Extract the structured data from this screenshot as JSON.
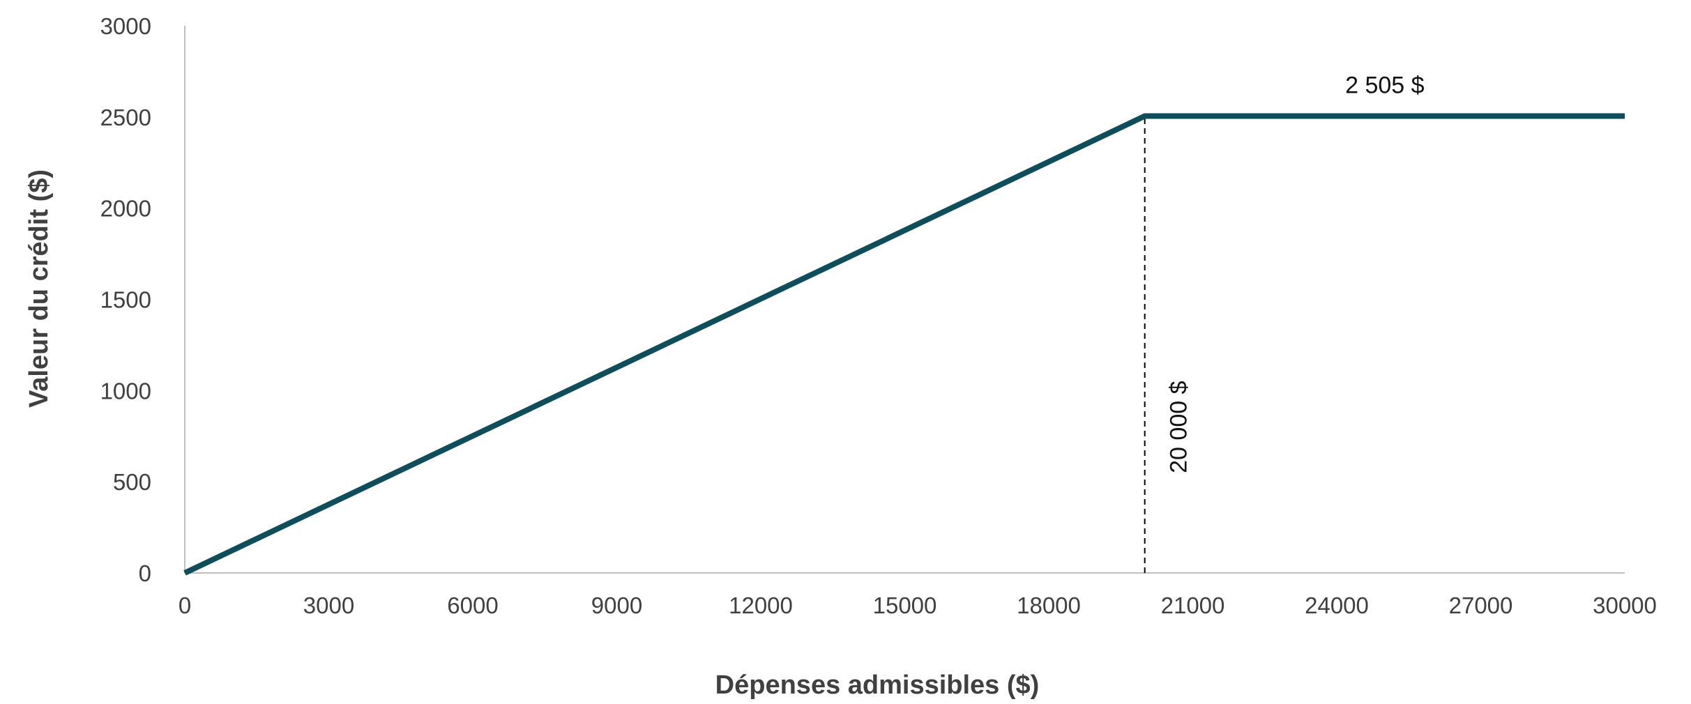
{
  "chart_data": {
    "type": "line",
    "title": "",
    "xlabel": "Dépenses admissibles ($)",
    "ylabel": "Valeur du crédit ($)",
    "xlim": [
      0,
      30000
    ],
    "ylim": [
      0,
      3000
    ],
    "x_ticks": [
      0,
      3000,
      6000,
      9000,
      12000,
      15000,
      18000,
      21000,
      24000,
      27000,
      30000
    ],
    "y_ticks": [
      0,
      500,
      1000,
      1500,
      2000,
      2500,
      3000
    ],
    "grid": false,
    "legend": "none",
    "series": [
      {
        "x": [
          0,
          20000,
          30000
        ],
        "y": [
          0,
          2505,
          2505
        ],
        "color": "#0f4d5a"
      }
    ],
    "reference_lines": [
      {
        "orientation": "vertical",
        "x": 20000,
        "y": [
          0,
          2505
        ],
        "style": "dashed",
        "color": "#000000"
      }
    ],
    "annotations": [
      {
        "text": "2 505 $",
        "x": 25000,
        "y": 2505,
        "position": "above"
      },
      {
        "text": "20 000 $",
        "x": 20000,
        "y": 800,
        "rotation": -90
      }
    ]
  }
}
